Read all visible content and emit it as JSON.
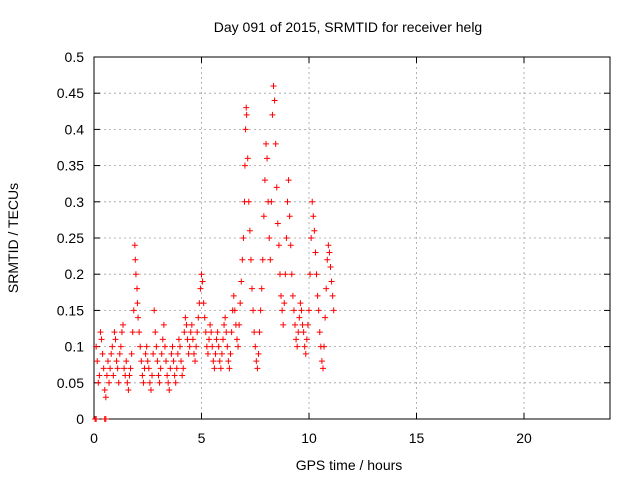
{
  "chart_data": {
    "type": "scatter",
    "title": "Day 091 of 2015, SRMTID for receiver helg",
    "xlabel": "GPS time / hours",
    "ylabel": "SRMTID / TECUs",
    "xlim": [
      0,
      24
    ],
    "ylim": [
      0,
      0.5
    ],
    "xticks": [
      0,
      5,
      10,
      15,
      20
    ],
    "xtick_labels": [
      "0",
      "5",
      "10",
      "15",
      "20"
    ],
    "yticks": [
      0,
      0.05,
      0.1,
      0.15,
      0.2,
      0.25,
      0.3,
      0.35,
      0.4,
      0.45,
      0.5
    ],
    "ytick_labels": [
      "0",
      "0.05",
      "0.1",
      "0.15",
      "0.2",
      "0.25",
      "0.3",
      "0.35",
      "0.4",
      "0.45",
      "0.5"
    ],
    "grid": true,
    "marker": "+",
    "color": "#ff0000",
    "series": [
      {
        "points": [
          [
            0.05,
            0.0
          ],
          [
            0.1,
            0.0
          ],
          [
            0.5,
            0.0
          ],
          [
            0.55,
            0.0
          ],
          [
            0.1,
            0.1
          ],
          [
            0.15,
            0.08
          ],
          [
            0.2,
            0.05
          ],
          [
            0.25,
            0.06
          ],
          [
            0.3,
            0.12
          ],
          [
            0.35,
            0.11
          ],
          [
            0.4,
            0.09
          ],
          [
            0.45,
            0.07
          ],
          [
            0.5,
            0.04
          ],
          [
            0.55,
            0.03
          ],
          [
            0.6,
            0.06
          ],
          [
            0.65,
            0.08
          ],
          [
            0.7,
            0.05
          ],
          [
            0.75,
            0.07
          ],
          [
            0.8,
            0.09
          ],
          [
            0.85,
            0.1
          ],
          [
            0.9,
            0.06
          ],
          [
            0.95,
            0.12
          ],
          [
            1.0,
            0.11
          ],
          [
            1.05,
            0.08
          ],
          [
            1.1,
            0.07
          ],
          [
            1.15,
            0.05
          ],
          [
            1.2,
            0.09
          ],
          [
            1.25,
            0.1
          ],
          [
            1.3,
            0.12
          ],
          [
            1.35,
            0.13
          ],
          [
            1.4,
            0.07
          ],
          [
            1.45,
            0.06
          ],
          [
            1.5,
            0.08
          ],
          [
            1.55,
            0.05
          ],
          [
            1.6,
            0.04
          ],
          [
            1.65,
            0.06
          ],
          [
            1.7,
            0.07
          ],
          [
            1.75,
            0.09
          ],
          [
            1.8,
            0.12
          ],
          [
            1.85,
            0.15
          ],
          [
            1.9,
            0.24
          ],
          [
            1.92,
            0.22
          ],
          [
            1.95,
            0.2
          ],
          [
            2.0,
            0.18
          ],
          [
            2.02,
            0.16
          ],
          [
            2.05,
            0.14
          ],
          [
            2.1,
            0.12
          ],
          [
            2.15,
            0.1
          ],
          [
            2.2,
            0.08
          ],
          [
            2.25,
            0.06
          ],
          [
            2.3,
            0.05
          ],
          [
            2.35,
            0.07
          ],
          [
            2.4,
            0.09
          ],
          [
            2.45,
            0.1
          ],
          [
            2.5,
            0.08
          ],
          [
            2.55,
            0.07
          ],
          [
            2.6,
            0.05
          ],
          [
            2.65,
            0.04
          ],
          [
            2.7,
            0.06
          ],
          [
            2.75,
            0.09
          ],
          [
            2.8,
            0.15
          ],
          [
            2.85,
            0.12
          ],
          [
            2.9,
            0.1
          ],
          [
            2.95,
            0.08
          ],
          [
            3.0,
            0.06
          ],
          [
            3.05,
            0.05
          ],
          [
            3.1,
            0.07
          ],
          [
            3.15,
            0.09
          ],
          [
            3.2,
            0.11
          ],
          [
            3.25,
            0.13
          ],
          [
            3.3,
            0.1
          ],
          [
            3.35,
            0.08
          ],
          [
            3.4,
            0.06
          ],
          [
            3.45,
            0.05
          ],
          [
            3.5,
            0.04
          ],
          [
            3.55,
            0.07
          ],
          [
            3.6,
            0.09
          ],
          [
            3.65,
            0.1
          ],
          [
            3.7,
            0.08
          ],
          [
            3.75,
            0.06
          ],
          [
            3.8,
            0.05
          ],
          [
            3.85,
            0.07
          ],
          [
            3.9,
            0.09
          ],
          [
            3.95,
            0.11
          ],
          [
            4.0,
            0.1
          ],
          [
            4.05,
            0.08
          ],
          [
            4.1,
            0.06
          ],
          [
            4.15,
            0.07
          ],
          [
            4.2,
            0.12
          ],
          [
            4.25,
            0.14
          ],
          [
            4.3,
            0.13
          ],
          [
            4.35,
            0.11
          ],
          [
            4.4,
            0.09
          ],
          [
            4.45,
            0.1
          ],
          [
            4.5,
            0.12
          ],
          [
            4.55,
            0.13
          ],
          [
            4.6,
            0.11
          ],
          [
            4.65,
            0.09
          ],
          [
            4.7,
            0.08
          ],
          [
            4.75,
            0.1
          ],
          [
            4.8,
            0.12
          ],
          [
            4.85,
            0.14
          ],
          [
            4.9,
            0.16
          ],
          [
            4.95,
            0.18
          ],
          [
            5.0,
            0.2
          ],
          [
            5.05,
            0.19
          ],
          [
            5.1,
            0.16
          ],
          [
            5.15,
            0.14
          ],
          [
            5.2,
            0.12
          ],
          [
            5.25,
            0.1
          ],
          [
            5.3,
            0.09
          ],
          [
            5.35,
            0.11
          ],
          [
            5.4,
            0.13
          ],
          [
            5.45,
            0.12
          ],
          [
            5.5,
            0.1
          ],
          [
            5.55,
            0.08
          ],
          [
            5.6,
            0.07
          ],
          [
            5.65,
            0.09
          ],
          [
            5.7,
            0.11
          ],
          [
            5.75,
            0.12
          ],
          [
            5.8,
            0.1
          ],
          [
            5.85,
            0.08
          ],
          [
            5.9,
            0.07
          ],
          [
            5.95,
            0.09
          ],
          [
            6.0,
            0.11
          ],
          [
            6.05,
            0.13
          ],
          [
            6.1,
            0.14
          ],
          [
            6.15,
            0.12
          ],
          [
            6.2,
            0.1
          ],
          [
            6.25,
            0.08
          ],
          [
            6.3,
            0.07
          ],
          [
            6.35,
            0.09
          ],
          [
            6.4,
            0.12
          ],
          [
            6.45,
            0.15
          ],
          [
            6.5,
            0.17
          ],
          [
            6.55,
            0.15
          ],
          [
            6.6,
            0.13
          ],
          [
            6.65,
            0.11
          ],
          [
            6.7,
            0.1
          ],
          [
            6.75,
            0.13
          ],
          [
            6.8,
            0.16
          ],
          [
            6.85,
            0.19
          ],
          [
            6.9,
            0.22
          ],
          [
            6.95,
            0.25
          ],
          [
            7.0,
            0.3
          ],
          [
            7.02,
            0.35
          ],
          [
            7.05,
            0.4
          ],
          [
            7.08,
            0.43
          ],
          [
            7.1,
            0.42
          ],
          [
            7.15,
            0.36
          ],
          [
            7.2,
            0.3
          ],
          [
            7.25,
            0.26
          ],
          [
            7.3,
            0.22
          ],
          [
            7.35,
            0.18
          ],
          [
            7.4,
            0.15
          ],
          [
            7.45,
            0.12
          ],
          [
            7.5,
            0.1
          ],
          [
            7.55,
            0.08
          ],
          [
            7.6,
            0.07
          ],
          [
            7.65,
            0.09
          ],
          [
            7.7,
            0.12
          ],
          [
            7.75,
            0.15
          ],
          [
            7.8,
            0.18
          ],
          [
            7.85,
            0.22
          ],
          [
            7.9,
            0.28
          ],
          [
            7.95,
            0.33
          ],
          [
            8.0,
            0.38
          ],
          [
            8.05,
            0.36
          ],
          [
            8.1,
            0.3
          ],
          [
            8.15,
            0.25
          ],
          [
            8.2,
            0.22
          ],
          [
            8.25,
            0.3
          ],
          [
            8.3,
            0.42
          ],
          [
            8.35,
            0.46
          ],
          [
            8.4,
            0.44
          ],
          [
            8.45,
            0.38
          ],
          [
            8.5,
            0.32
          ],
          [
            8.55,
            0.27
          ],
          [
            8.6,
            0.24
          ],
          [
            8.65,
            0.2
          ],
          [
            8.7,
            0.17
          ],
          [
            8.75,
            0.15
          ],
          [
            8.8,
            0.13
          ],
          [
            8.85,
            0.16
          ],
          [
            8.9,
            0.2
          ],
          [
            8.95,
            0.25
          ],
          [
            9.0,
            0.3
          ],
          [
            9.05,
            0.33
          ],
          [
            9.1,
            0.28
          ],
          [
            9.15,
            0.24
          ],
          [
            9.2,
            0.2
          ],
          [
            9.25,
            0.17
          ],
          [
            9.3,
            0.15
          ],
          [
            9.35,
            0.13
          ],
          [
            9.4,
            0.11
          ],
          [
            9.45,
            0.1
          ],
          [
            9.5,
            0.12
          ],
          [
            9.55,
            0.14
          ],
          [
            9.6,
            0.16
          ],
          [
            9.65,
            0.15
          ],
          [
            9.7,
            0.13
          ],
          [
            9.75,
            0.12
          ],
          [
            9.8,
            0.1
          ],
          [
            9.85,
            0.09
          ],
          [
            9.9,
            0.11
          ],
          [
            9.95,
            0.13
          ],
          [
            10.0,
            0.15
          ],
          [
            10.05,
            0.2
          ],
          [
            10.1,
            0.25
          ],
          [
            10.15,
            0.3
          ],
          [
            10.2,
            0.28
          ],
          [
            10.25,
            0.26
          ],
          [
            10.3,
            0.23
          ],
          [
            10.35,
            0.2
          ],
          [
            10.4,
            0.17
          ],
          [
            10.45,
            0.15
          ],
          [
            10.5,
            0.12
          ],
          [
            10.55,
            0.1
          ],
          [
            10.6,
            0.08
          ],
          [
            10.65,
            0.07
          ],
          [
            10.7,
            0.1
          ],
          [
            10.75,
            0.14
          ],
          [
            10.8,
            0.18
          ],
          [
            10.85,
            0.22
          ],
          [
            10.9,
            0.24
          ],
          [
            10.95,
            0.23
          ],
          [
            11.0,
            0.21
          ],
          [
            11.05,
            0.19
          ],
          [
            11.1,
            0.17
          ],
          [
            11.15,
            0.15
          ]
        ]
      }
    ]
  }
}
